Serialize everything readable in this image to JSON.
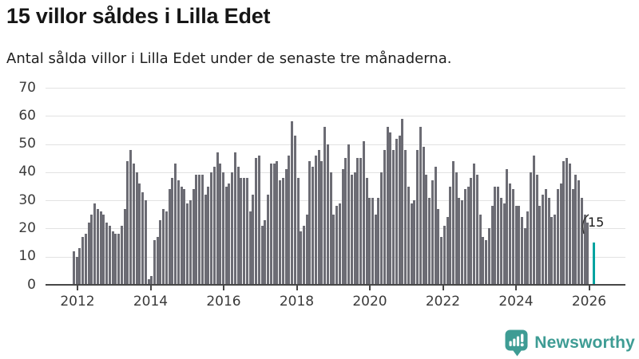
{
  "header": {
    "title": "15 villor såldes i Lilla Edet",
    "subtitle": "Antal sålda villor i Lilla Edet under de senaste tre månaderna."
  },
  "chart_data": {
    "type": "bar",
    "title": "15 villor såldes i Lilla Edet",
    "x_unit": "month",
    "x_start": "2011-11",
    "x_tick_labels": [
      "2012",
      "2014",
      "2016",
      "2018",
      "2020",
      "2022",
      "2024",
      "2026"
    ],
    "y_ticks": [
      0,
      10,
      20,
      30,
      40,
      50,
      60,
      70
    ],
    "ylim": [
      0,
      70
    ],
    "grid": true,
    "bar_color": "#6c6c74",
    "highlight_color": "#00a3a0",
    "values": [
      12,
      10,
      13,
      17,
      18,
      22,
      25,
      29,
      27,
      26,
      25,
      22,
      21,
      19,
      18,
      18,
      21,
      27,
      44,
      48,
      43,
      40,
      36,
      33,
      30,
      2,
      3,
      16,
      17,
      23,
      27,
      26,
      34,
      38,
      43,
      37,
      35,
      34,
      29,
      30,
      34,
      39,
      39,
      39,
      32,
      35,
      40,
      42,
      47,
      43,
      40,
      35,
      36,
      40,
      47,
      42,
      38,
      38,
      38,
      26,
      32,
      45,
      46,
      21,
      23,
      32,
      43,
      43,
      44,
      37,
      38,
      41,
      46,
      58,
      53,
      38,
      19,
      21,
      25,
      44,
      42,
      46,
      48,
      44,
      56,
      50,
      40,
      25,
      28,
      29,
      41,
      45,
      50,
      39,
      40,
      45,
      45,
      51,
      38,
      31,
      31,
      25,
      31,
      40,
      48,
      56,
      54,
      48,
      52,
      53,
      59,
      48,
      35,
      29,
      30,
      48,
      56,
      49,
      39,
      31,
      37,
      42,
      27,
      17,
      21,
      24,
      35,
      44,
      40,
      31,
      30,
      34,
      35,
      38,
      43,
      39,
      25,
      17,
      16,
      20,
      28,
      35,
      35,
      31,
      29,
      41,
      36,
      34,
      28,
      28,
      24,
      20,
      26,
      40,
      46,
      39,
      28,
      32,
      34,
      31,
      24,
      25,
      34,
      36,
      44,
      45,
      43,
      34,
      39,
      37,
      31,
      25,
      22
    ],
    "highlight": {
      "label": "15",
      "value": 15,
      "gap_slots": 1
    }
  },
  "branding": {
    "name": "Newsworthy",
    "color": "#3e9c94"
  }
}
